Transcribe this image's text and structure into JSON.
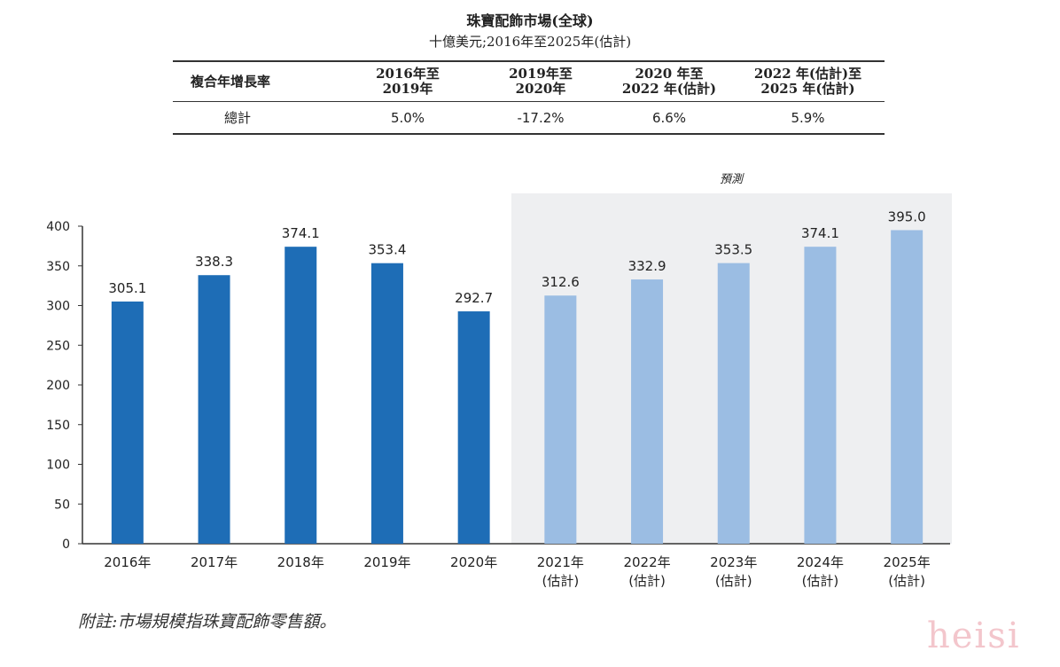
{
  "title": "珠寶配飾市場(全球)",
  "subtitle": "十億美元;2016年至2025年(估計)",
  "cagr_table": {
    "headers": [
      "複合年增長率",
      "2016年至\n2019年",
      "2019年至\n2020年",
      "2020 年至\n2022 年(估計)",
      "2022 年(估計)至\n2025 年(估計)"
    ],
    "row_label": "總計",
    "values": [
      "5.0%",
      "-17.2%",
      "6.6%",
      "5.9%"
    ]
  },
  "forecast_label": "預測",
  "note": "附註:市場規模指珠寶配飾零售額。",
  "watermark": "heisi",
  "colors": {
    "actual": "#1e6db6",
    "forecast": "#9bbde3",
    "forecast_bg": "#eeeff1"
  },
  "chart_data": {
    "type": "bar",
    "categories": [
      "2016年",
      "2017年",
      "2018年",
      "2019年",
      "2020年",
      "2021年\n(估計)",
      "2022年\n(估計)",
      "2023年\n(估計)",
      "2024年\n(估計)",
      "2025年\n(估計)"
    ],
    "values": [
      305.1,
      338.3,
      374.1,
      353.4,
      292.7,
      312.6,
      332.9,
      353.5,
      374.1,
      395.0
    ],
    "data_labels": [
      "305.1",
      "338.3",
      "374.1",
      "353.4",
      "292.7",
      "312.6",
      "332.9",
      "353.5",
      "374.1",
      "395.0"
    ],
    "forecast": [
      false,
      false,
      false,
      false,
      false,
      true,
      true,
      true,
      true,
      true
    ],
    "ylim": [
      0,
      400
    ],
    "yticks": [
      0,
      50,
      100,
      150,
      200,
      250,
      300,
      350,
      400
    ],
    "grid": false,
    "title": "",
    "xlabel": "",
    "ylabel": ""
  }
}
